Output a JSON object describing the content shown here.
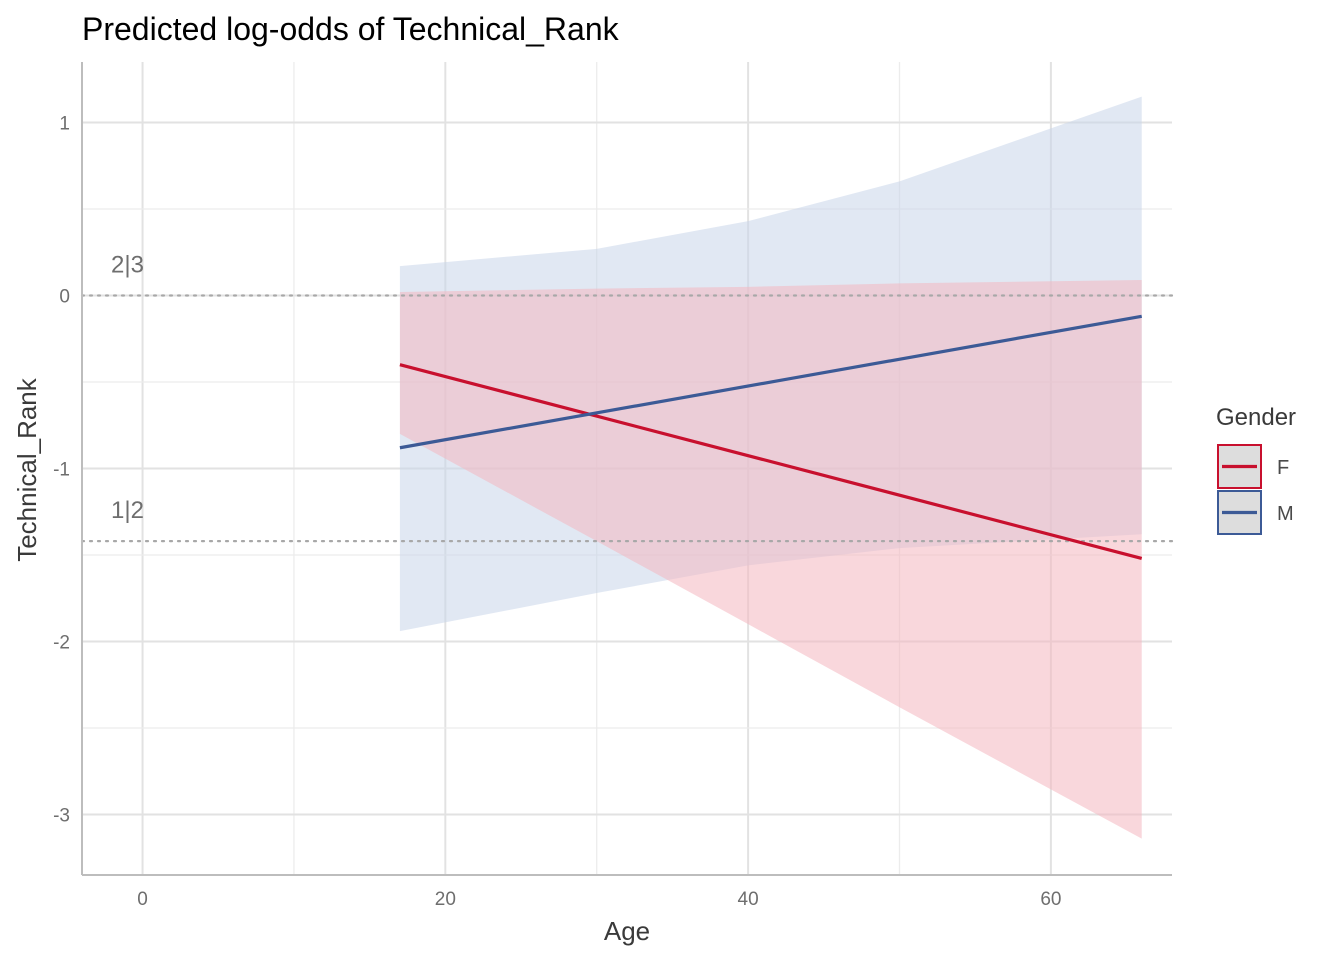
{
  "chart_data": {
    "type": "line",
    "title": "Predicted log-odds of Technical_Rank",
    "xlabel": "Age",
    "ylabel": "Technical_Rank",
    "xlim": [
      -4,
      68
    ],
    "ylim": [
      -3.35,
      1.35
    ],
    "x_ticks": [
      0,
      20,
      40,
      60
    ],
    "y_ticks": [
      1,
      0,
      -1,
      -2,
      -3
    ],
    "x_tick_labels": [
      "0",
      "20",
      "40",
      "60"
    ],
    "y_tick_labels": [
      "1",
      "0",
      "-1",
      "-2",
      "-3"
    ],
    "grid": true,
    "legend": {
      "title": "Gender",
      "position": "right"
    },
    "thresholds": [
      {
        "label": "2|3",
        "value": 0.0
      },
      {
        "label": "1|2",
        "value": -1.42
      }
    ],
    "series": [
      {
        "name": "F",
        "color": "#c8102e",
        "ribbon_color": "#f4b6bf",
        "x": [
          17,
          66
        ],
        "y": [
          -0.4,
          -1.52
        ],
        "ribbon_x": [
          17,
          30,
          40,
          50,
          66
        ],
        "ribbon_lower": [
          -0.8,
          -1.42,
          -1.9,
          -2.38,
          -3.14
        ],
        "ribbon_upper": [
          0.02,
          0.04,
          0.05,
          0.07,
          0.09
        ]
      },
      {
        "name": "M",
        "color": "#3c5a96",
        "ribbon_color": "#c8d6ea",
        "x": [
          17,
          66
        ],
        "y": [
          -0.88,
          -0.12
        ],
        "ribbon_x": [
          17,
          30,
          40,
          50,
          66
        ],
        "ribbon_lower": [
          -1.94,
          -1.72,
          -1.56,
          -1.46,
          -1.38
        ],
        "ribbon_upper": [
          0.17,
          0.27,
          0.43,
          0.66,
          1.15
        ]
      }
    ]
  }
}
